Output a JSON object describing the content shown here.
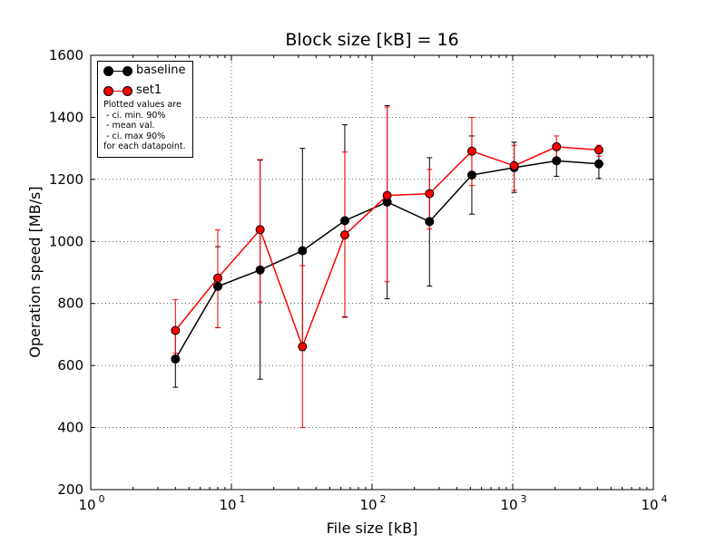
{
  "chart_data": {
    "type": "line",
    "title": "Block size [kB] = 16",
    "xlabel": "File size [kB]",
    "ylabel": "Operation speed [MB/s]",
    "xscale": "log",
    "xlim": [
      1,
      10000
    ],
    "ylim": [
      200,
      1600
    ],
    "yticks": [
      200,
      400,
      600,
      800,
      1000,
      1200,
      1400,
      1600
    ],
    "xticks": [
      {
        "value": 1,
        "base": "10",
        "exp": "0"
      },
      {
        "value": 10,
        "base": "10",
        "exp": "1"
      },
      {
        "value": 100,
        "base": "10",
        "exp": "2"
      },
      {
        "value": 1000,
        "base": "10",
        "exp": "3"
      },
      {
        "value": 10000,
        "base": "10",
        "exp": "4"
      }
    ],
    "grid": true,
    "legend_position": "top-left",
    "x": [
      4,
      8,
      16,
      32,
      64,
      128,
      256,
      512,
      1024,
      2048,
      4096
    ],
    "series": [
      {
        "name": "baseline",
        "color": "#000000",
        "values": [
          621,
          855,
          908,
          970,
          1067,
          1127,
          1064,
          1214,
          1238,
          1260,
          1250
        ],
        "err_low": [
          530,
          722,
          556,
          648,
          757,
          815,
          856,
          1088,
          1158,
          1210,
          1203
        ],
        "err_high": [
          710,
          983,
          1262,
          1300,
          1376,
          1438,
          1270,
          1340,
          1320,
          1310,
          1303
        ]
      },
      {
        "name": "set1",
        "color": "#ff0000",
        "values": [
          713,
          882,
          1038,
          661,
          1021,
          1148,
          1154,
          1291,
          1244,
          1305,
          1295
        ],
        "err_low": [
          640,
          722,
          805,
          400,
          755,
          870,
          1040,
          1180,
          1165,
          1262,
          1275
        ],
        "err_high": [
          812,
          1037,
          1264,
          922,
          1288,
          1433,
          1232,
          1400,
          1310,
          1340,
          1310
        ]
      }
    ],
    "note": "Plotted values are\n - ci. min. 90%\n - mean val.\n - ci. max 90%\nfor each datapoint."
  }
}
